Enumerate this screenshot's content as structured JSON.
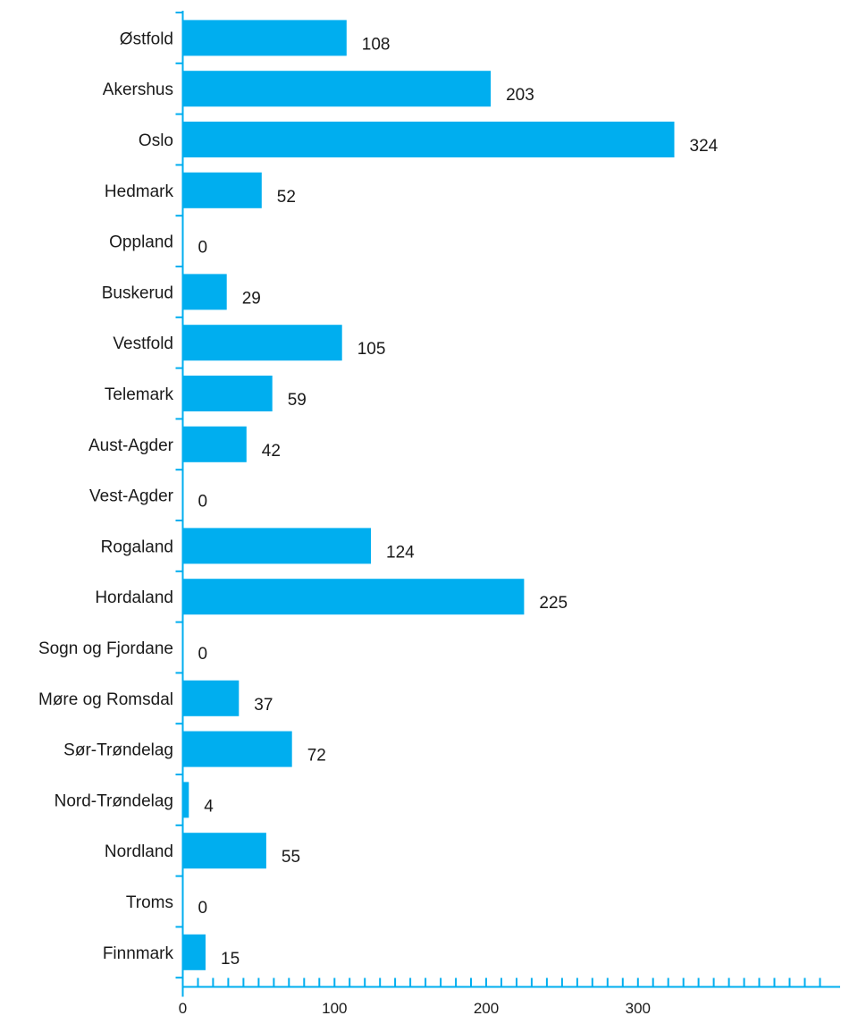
{
  "chart_data": {
    "type": "bar",
    "orientation": "horizontal",
    "categories": [
      "Østfold",
      "Akershus",
      "Oslo",
      "Hedmark",
      "Oppland",
      "Buskerud",
      "Vestfold",
      "Telemark",
      "Aust-Agder",
      "Vest-Agder",
      "Rogaland",
      "Hordaland",
      "Sogn og Fjordane",
      "Møre og Romsdal",
      "Sør-Trøndelag",
      "Nord-Trøndelag",
      "Nordland",
      "Troms",
      "Finnmark"
    ],
    "values": [
      108,
      203,
      324,
      52,
      0,
      29,
      105,
      59,
      42,
      0,
      124,
      225,
      0,
      37,
      72,
      4,
      55,
      0,
      15
    ],
    "data_labels": [
      "108",
      "203",
      "324",
      "52",
      "0",
      "29",
      "105",
      "59",
      "42",
      "0",
      "124",
      "225",
      "0",
      "37",
      "72",
      "4",
      "55",
      "0",
      "15"
    ],
    "x_ticks": [
      0,
      100,
      200,
      300
    ],
    "x_tick_labels": [
      "0",
      "100",
      "200",
      "300"
    ],
    "xlim": [
      0,
      430
    ],
    "minor_tick_step": 10,
    "title": "",
    "xlabel": "",
    "ylabel": "",
    "grid": false,
    "bar_color": "#00AEEF",
    "axis_color": "#00AEEF"
  }
}
